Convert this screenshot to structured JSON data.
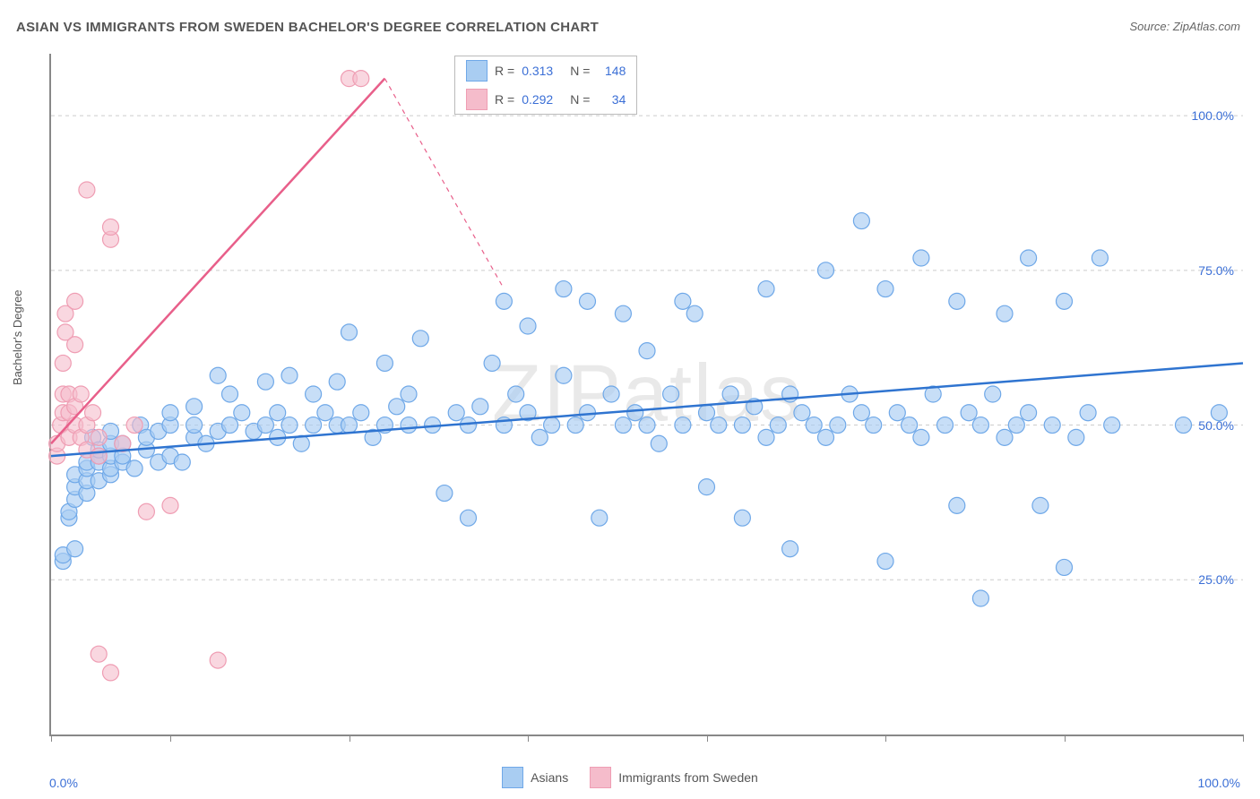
{
  "title": "ASIAN VS IMMIGRANTS FROM SWEDEN BACHELOR'S DEGREE CORRELATION CHART",
  "source": "Source: ZipAtlas.com",
  "watermark": "ZIPatlas",
  "ylabel": "Bachelor's Degree",
  "chart": {
    "type": "scatter",
    "xlim": [
      0,
      100
    ],
    "ylim": [
      0,
      110
    ],
    "yticks": [
      25,
      50,
      75,
      100
    ],
    "ytick_labels": [
      "25.0%",
      "50.0%",
      "75.0%",
      "100.0%"
    ],
    "xticks": [
      0,
      10,
      25,
      40,
      55,
      70,
      85,
      100
    ],
    "xaxis_labels": {
      "left": "0.0%",
      "right": "100.0%"
    },
    "background_color": "#ffffff",
    "grid_color": "#cccccc",
    "marker_radius": 9,
    "marker_stroke_width": 1.2,
    "trend_line_width": 2.5,
    "series": [
      {
        "name": "Asians",
        "fill": "#a9cdf2",
        "stroke": "#6fa8e8",
        "fill_opacity": 0.65,
        "r_value": "0.313",
        "n_value": "148",
        "trend": {
          "color": "#2f74d0",
          "x1": 0,
          "y1": 45,
          "x2": 100,
          "y2": 60,
          "dashed_ext": null
        },
        "points": [
          [
            1,
            28
          ],
          [
            1,
            29
          ],
          [
            1.5,
            35
          ],
          [
            1.5,
            36
          ],
          [
            2,
            38
          ],
          [
            2,
            30
          ],
          [
            2,
            40
          ],
          [
            2,
            42
          ],
          [
            3,
            39
          ],
          [
            3,
            41
          ],
          [
            3,
            43
          ],
          [
            3,
            44
          ],
          [
            3.5,
            48
          ],
          [
            4,
            41
          ],
          [
            4,
            44
          ],
          [
            4,
            45
          ],
          [
            4,
            46
          ],
          [
            5,
            42
          ],
          [
            5,
            43
          ],
          [
            5,
            45
          ],
          [
            5,
            47
          ],
          [
            5,
            49
          ],
          [
            6,
            44
          ],
          [
            6,
            45
          ],
          [
            6,
            47
          ],
          [
            7,
            43
          ],
          [
            7.5,
            50
          ],
          [
            8,
            46
          ],
          [
            8,
            48
          ],
          [
            9,
            44
          ],
          [
            9,
            49
          ],
          [
            10,
            45
          ],
          [
            10,
            50
          ],
          [
            10,
            52
          ],
          [
            11,
            44
          ],
          [
            12,
            48
          ],
          [
            12,
            50
          ],
          [
            12,
            53
          ],
          [
            13,
            47
          ],
          [
            14,
            49
          ],
          [
            14,
            58
          ],
          [
            15,
            50
          ],
          [
            15,
            55
          ],
          [
            16,
            52
          ],
          [
            17,
            49
          ],
          [
            18,
            50
          ],
          [
            18,
            57
          ],
          [
            19,
            48
          ],
          [
            19,
            52
          ],
          [
            20,
            50
          ],
          [
            20,
            58
          ],
          [
            21,
            47
          ],
          [
            22,
            50
          ],
          [
            22,
            55
          ],
          [
            23,
            52
          ],
          [
            24,
            50
          ],
          [
            24,
            57
          ],
          [
            25,
            50
          ],
          [
            25,
            65
          ],
          [
            26,
            52
          ],
          [
            27,
            48
          ],
          [
            28,
            50
          ],
          [
            28,
            60
          ],
          [
            29,
            53
          ],
          [
            30,
            50
          ],
          [
            30,
            55
          ],
          [
            31,
            64
          ],
          [
            32,
            50
          ],
          [
            33,
            39
          ],
          [
            34,
            52
          ],
          [
            35,
            50
          ],
          [
            35,
            35
          ],
          [
            36,
            53
          ],
          [
            37,
            60
          ],
          [
            38,
            50
          ],
          [
            38,
            70
          ],
          [
            39,
            55
          ],
          [
            40,
            52
          ],
          [
            40,
            66
          ],
          [
            41,
            48
          ],
          [
            42,
            50
          ],
          [
            43,
            72
          ],
          [
            43,
            58
          ],
          [
            44,
            50
          ],
          [
            45,
            52
          ],
          [
            45,
            70
          ],
          [
            46,
            35
          ],
          [
            47,
            55
          ],
          [
            48,
            50
          ],
          [
            48,
            68
          ],
          [
            49,
            52
          ],
          [
            50,
            50
          ],
          [
            50,
            62
          ],
          [
            51,
            47
          ],
          [
            52,
            55
          ],
          [
            53,
            70
          ],
          [
            53,
            50
          ],
          [
            54,
            68
          ],
          [
            55,
            40
          ],
          [
            55,
            52
          ],
          [
            56,
            50
          ],
          [
            57,
            55
          ],
          [
            58,
            35
          ],
          [
            58,
            50
          ],
          [
            59,
            53
          ],
          [
            60,
            48
          ],
          [
            60,
            72
          ],
          [
            61,
            50
          ],
          [
            62,
            55
          ],
          [
            62,
            30
          ],
          [
            63,
            52
          ],
          [
            64,
            50
          ],
          [
            65,
            75
          ],
          [
            65,
            48
          ],
          [
            66,
            50
          ],
          [
            67,
            55
          ],
          [
            68,
            52
          ],
          [
            68,
            83
          ],
          [
            69,
            50
          ],
          [
            70,
            72
          ],
          [
            70,
            28
          ],
          [
            71,
            52
          ],
          [
            72,
            50
          ],
          [
            73,
            48
          ],
          [
            73,
            77
          ],
          [
            74,
            55
          ],
          [
            75,
            50
          ],
          [
            76,
            70
          ],
          [
            76,
            37
          ],
          [
            77,
            52
          ],
          [
            78,
            50
          ],
          [
            78,
            22
          ],
          [
            79,
            55
          ],
          [
            80,
            48
          ],
          [
            80,
            68
          ],
          [
            81,
            50
          ],
          [
            82,
            77
          ],
          [
            82,
            52
          ],
          [
            83,
            37
          ],
          [
            84,
            50
          ],
          [
            85,
            70
          ],
          [
            85,
            27
          ],
          [
            86,
            48
          ],
          [
            87,
            52
          ],
          [
            88,
            77
          ],
          [
            89,
            50
          ],
          [
            95,
            50
          ],
          [
            98,
            52
          ]
        ]
      },
      {
        "name": "Immigrants from Sweden",
        "fill": "#f5bccb",
        "stroke": "#ef9db3",
        "fill_opacity": 0.6,
        "r_value": "0.292",
        "n_value": "34",
        "trend": {
          "color": "#e85f8a",
          "x1": 0,
          "y1": 47,
          "x2": 28,
          "y2": 106,
          "dashed_ext": {
            "x1": 28,
            "y1": 106,
            "x2": 38,
            "y2": 72
          }
        },
        "points": [
          [
            0.5,
            45
          ],
          [
            0.5,
            47
          ],
          [
            0.8,
            50
          ],
          [
            1,
            52
          ],
          [
            1,
            55
          ],
          [
            1,
            60
          ],
          [
            1.2,
            65
          ],
          [
            1.2,
            68
          ],
          [
            1.5,
            48
          ],
          [
            1.5,
            52
          ],
          [
            1.5,
            55
          ],
          [
            2,
            50
          ],
          [
            2,
            53
          ],
          [
            2,
            63
          ],
          [
            2,
            70
          ],
          [
            2.5,
            48
          ],
          [
            2.5,
            55
          ],
          [
            3,
            46
          ],
          [
            3,
            50
          ],
          [
            3,
            88
          ],
          [
            3.5,
            52
          ],
          [
            4,
            45
          ],
          [
            4,
            48
          ],
          [
            4,
            13
          ],
          [
            5,
            80
          ],
          [
            5,
            82
          ],
          [
            5,
            10
          ],
          [
            6,
            47
          ],
          [
            7,
            50
          ],
          [
            8,
            36
          ],
          [
            10,
            37
          ],
          [
            14,
            12
          ],
          [
            25,
            106
          ],
          [
            26,
            106
          ]
        ]
      }
    ],
    "legend_box": {
      "rows": [
        {
          "swatch_fill": "#a9cdf2",
          "swatch_stroke": "#6fa8e8",
          "r_label": "R =",
          "r_val": "0.313",
          "n_label": "N =",
          "n_val": "148"
        },
        {
          "swatch_fill": "#f5bccb",
          "swatch_stroke": "#ef9db3",
          "r_label": "R =",
          "r_val": "0.292",
          "n_label": "N =",
          "n_val": " 34"
        }
      ]
    },
    "bottom_legend": [
      {
        "swatch_fill": "#a9cdf2",
        "swatch_stroke": "#6fa8e8",
        "label": "Asians"
      },
      {
        "swatch_fill": "#f5bccb",
        "swatch_stroke": "#ef9db3",
        "label": "Immigrants from Sweden"
      }
    ]
  }
}
